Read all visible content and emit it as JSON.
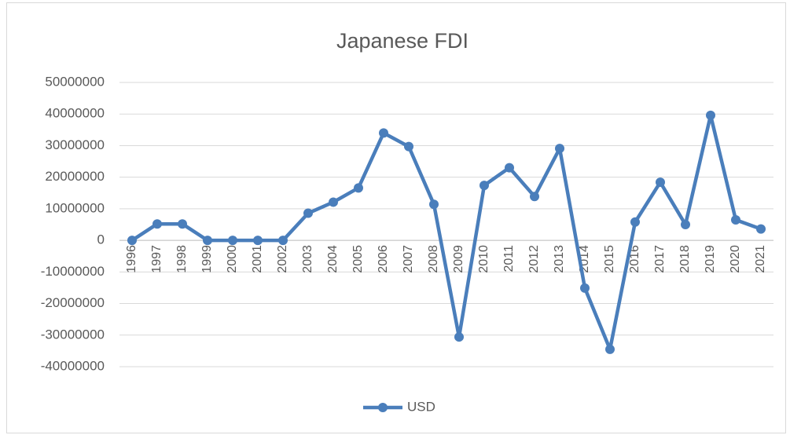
{
  "chart_data": {
    "type": "line",
    "title": "Japanese FDI",
    "categories": [
      "1996",
      "1997",
      "1998",
      "1999",
      "2000",
      "2001",
      "2002",
      "2003",
      "2004",
      "2005",
      "2006",
      "2007",
      "2008",
      "2009",
      "2010",
      "2011",
      "2012",
      "2013",
      "2014",
      "2015",
      "2016",
      "2017",
      "2018",
      "2019",
      "2020",
      "2021"
    ],
    "series": [
      {
        "name": "USD",
        "color": "#4a7ebb",
        "values": [
          0,
          5200000,
          5200000,
          0,
          0,
          0,
          0,
          8600000,
          12100000,
          16600000,
          34000000,
          29700000,
          11400000,
          -30600000,
          17400000,
          23000000,
          13900000,
          29100000,
          -15100000,
          -34500000,
          5800000,
          18400000,
          5000000,
          39600000,
          6500000,
          3600000
        ]
      }
    ],
    "ylim": [
      -40000000,
      50000000
    ],
    "yticks": [
      -40000000,
      -30000000,
      -20000000,
      -10000000,
      0,
      10000000,
      20000000,
      30000000,
      40000000,
      50000000
    ],
    "grid": true,
    "legend": "bottom"
  }
}
